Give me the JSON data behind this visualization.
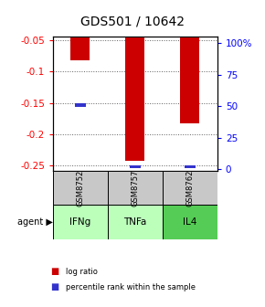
{
  "title": "GDS501 / 10642",
  "samples": [
    "GSM8752",
    "GSM8757",
    "GSM8762"
  ],
  "agents": [
    "IFNg",
    "TNFa",
    "IL4"
  ],
  "log_ratios": [
    -0.082,
    -0.243,
    -0.183
  ],
  "percentile_ranks": [
    49,
    3,
    3
  ],
  "ylim_left": [
    -0.258,
    -0.045
  ],
  "ylim_right": [
    -1.05,
    105
  ],
  "yticks_left": [
    -0.25,
    -0.2,
    -0.15,
    -0.1,
    -0.05
  ],
  "yticks_right": [
    0,
    25,
    50,
    75,
    100
  ],
  "ytick_labels_right": [
    "0",
    "25",
    "50",
    "75",
    "100%"
  ],
  "bar_color_red": "#cc0000",
  "bar_color_blue": "#3333cc",
  "agent_colors": [
    "#bbffbb",
    "#bbffbb",
    "#55cc55"
  ],
  "sample_bg": "#c8c8c8",
  "legend_red": "log ratio",
  "legend_blue": "percentile rank within the sample",
  "grid_color": "#606060",
  "title_fontsize": 10,
  "tick_fontsize": 7.5,
  "bar_width": 0.35
}
